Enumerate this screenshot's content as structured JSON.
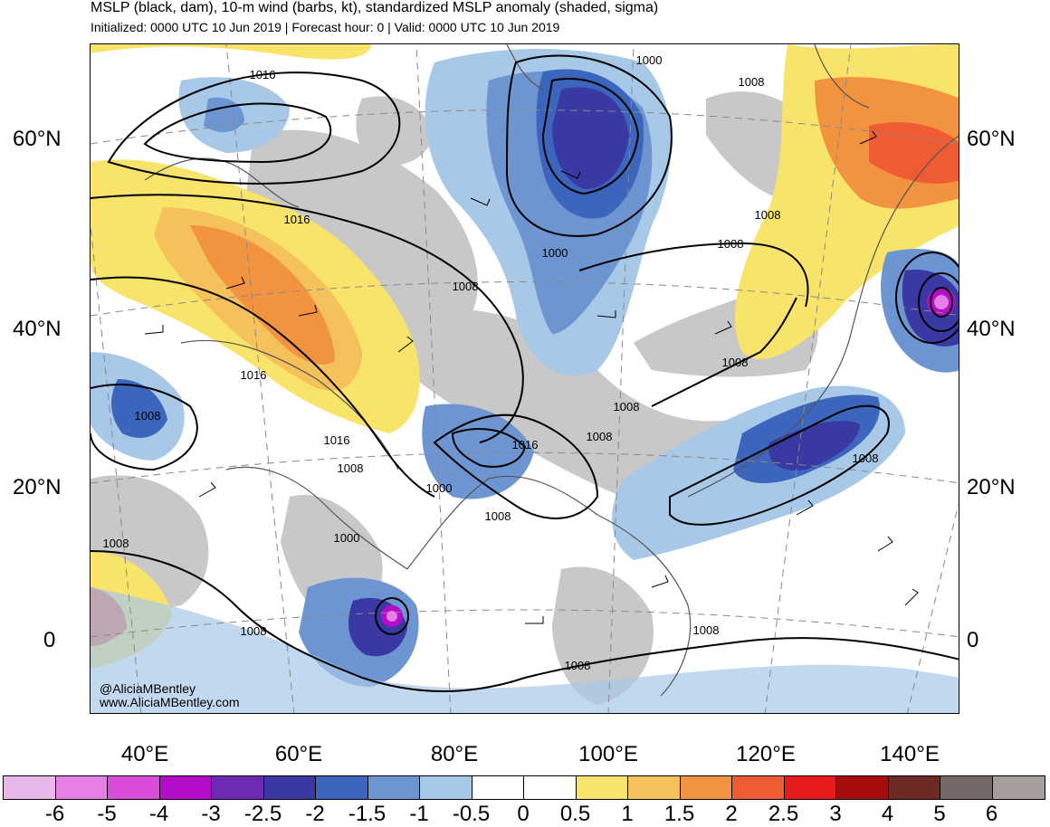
{
  "header": {
    "title": "MSLP (black, dam), 10-m wind (barbs, kt), standardized MSLP anomaly (shaded, sigma)",
    "subtitle": "Initialized: 0000 UTC 10 Jun 2019 | Forecast hour: 0 | Valid: 0000 UTC 10 Jun 2019"
  },
  "map": {
    "lat_labels": [
      "60°N",
      "40°N",
      "20°N",
      "0"
    ],
    "lon_labels": [
      "40°E",
      "60°E",
      "80°E",
      "100°E",
      "120°E",
      "140°E"
    ],
    "isobar_labels": [
      "1016",
      "1000",
      "1008",
      "1016",
      "1008",
      "1000",
      "1008",
      "1016",
      "1008",
      "1008",
      "1016",
      "1008",
      "1016",
      "1008",
      "1008",
      "1000",
      "1008",
      "1008",
      "1000",
      "1008",
      "1008",
      "1008",
      "1008",
      "1008"
    ],
    "credit_handle": "@AliciaMBentley",
    "credit_site": "www.AliciaMBentley.com"
  },
  "colorbar": {
    "colors": [
      "#e8b8e8",
      "#e57fe5",
      "#d94cd9",
      "#b40cc8",
      "#6e2ab4",
      "#3a39a3",
      "#3c66bd",
      "#6d95d2",
      "#a8c8e8",
      "#ffffff",
      "#ffffff",
      "#f9e46b",
      "#f5c15a",
      "#f29340",
      "#ef5b33",
      "#e61b1b",
      "#a50d0d",
      "#6e2a22",
      "#756868",
      "#a69d9d"
    ],
    "ticks": [
      "-6",
      "-5",
      "-4",
      "-3",
      "-2.5",
      "-2",
      "-1.5",
      "-1",
      "-0.5",
      "0",
      "0.5",
      "1",
      "1.5",
      "2",
      "2.5",
      "3",
      "4",
      "5",
      "6"
    ]
  }
}
